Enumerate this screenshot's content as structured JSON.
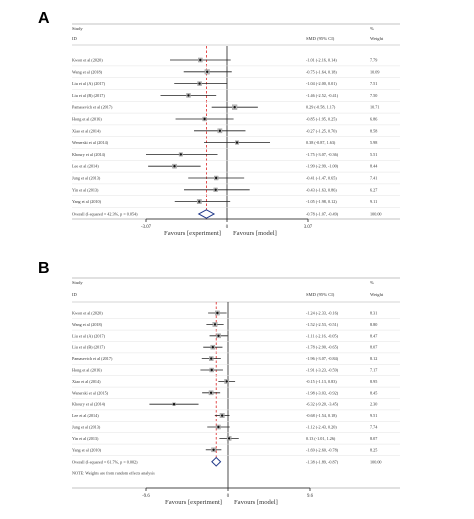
{
  "panels": [
    {
      "letter": "A",
      "header": {
        "study": "Study",
        "id": "ID",
        "smd": "SMD (95% CI)",
        "pct": "%",
        "weight": "Weight"
      },
      "axis": {
        "min": -3.07,
        "max": 3.07,
        "left_label": "-3.07",
        "center_label": "0",
        "right_label": "3.07"
      },
      "favours": {
        "left": "Favours [experiment]",
        "right": "Favours [model]"
      },
      "overall_line": -0.78,
      "studies": [
        {
          "id": "Kwon et al (2020)",
          "smd": -1.01,
          "lo": -2.16,
          "hi": 0.14,
          "ci": "-1.01 (-2.16, 0.14)",
          "weight": "7.79"
        },
        {
          "id": "Wang et al (2018)",
          "smd": -0.75,
          "lo": -1.64,
          "hi": 0.18,
          "ci": "-0.75 (-1.64, 0.18)",
          "weight": "10.09"
        },
        {
          "id": "Liu et al (A) (2017)",
          "smd": -1.04,
          "lo": -2.0,
          "hi": 0.01,
          "ci": "-1.04 (-2.00, 0.01)",
          "weight": "7.51"
        },
        {
          "id": "Liu et al (B) (2017)",
          "smd": -1.46,
          "lo": -2.52,
          "hi": -0.41,
          "ci": "-1.46 (-2.52, -0.41)",
          "weight": "7.50"
        },
        {
          "id": "Pamasevich et al (2017)",
          "smd": 0.29,
          "lo": -0.58,
          "hi": 1.17,
          "ci": "0.29 (-0.58, 1.17)",
          "weight": "10.71"
        },
        {
          "id": "Hong et al (2016)",
          "smd": -0.85,
          "lo": -1.95,
          "hi": 0.25,
          "ci": "-0.85 (-1.95, 0.25)",
          "weight": "6.86"
        },
        {
          "id": "Xiao et al (2014)",
          "smd": -0.27,
          "lo": -1.25,
          "hi": 0.7,
          "ci": "-0.27 (-1.25, 0.70)",
          "weight": "8.58"
        },
        {
          "id": "Wenerski et al (2014)",
          "smd": 0.38,
          "lo": -0.87,
          "hi": 1.63,
          "ci": "0.38 (-0.87, 1.63)",
          "weight": "5.98"
        },
        {
          "id": "Khoury et al (2014)",
          "smd": -1.75,
          "lo": -3.07,
          "hi": -0.36,
          "ci": "-1.75 (-3.07, -0.36)",
          "weight": "5.51"
        },
        {
          "id": "Lee et al (2014)",
          "smd": -1.99,
          "lo": -2.99,
          "hi": -1.0,
          "ci": "-1.99 (-2.99, -1.00)",
          "weight": "8.44"
        },
        {
          "id": "Jung et al (2013)",
          "smd": -0.41,
          "lo": -1.47,
          "hi": 0.65,
          "ci": "-0.41 (-1.47, 0.65)",
          "weight": "7.41"
        },
        {
          "id": "Yin et al (2013)",
          "smd": -0.43,
          "lo": -1.63,
          "hi": 0.86,
          "ci": "-0.43 (-1.63, 0.86)",
          "weight": "6.27"
        },
        {
          "id": "Yang et al (2010)",
          "smd": -1.05,
          "lo": -1.98,
          "hi": 0.12,
          "ci": "-1.05 (-1.98, 0.12)",
          "weight": "9.11"
        }
      ],
      "overall": {
        "label": "Overall (I-squared = 42.3%, p = 0.054)",
        "smd": -0.78,
        "lo": -1.07,
        "hi": -0.49,
        "ci": "-0.78 (-1.07, -0.49)",
        "weight": "100.00"
      },
      "note": ""
    },
    {
      "letter": "B",
      "header": {
        "study": "Study",
        "id": "ID",
        "smd": "SMD (95% CI)",
        "pct": "%",
        "weight": "Weight"
      },
      "axis": {
        "min": -9.6,
        "max": 9.6,
        "left_label": "-9.6",
        "center_label": "0",
        "right_label": "9.6"
      },
      "favours": {
        "left": "Favours [experiment]",
        "right": "Favours [model]"
      },
      "overall_line": -1.38,
      "studies": [
        {
          "id": "Kwon et al (2020)",
          "smd": -1.24,
          "lo": -2.33,
          "hi": -0.16,
          "ci": "-1.24 (-2.33, -0.16)",
          "weight": "8.31"
        },
        {
          "id": "Wang et al (2018)",
          "smd": -1.52,
          "lo": -2.53,
          "hi": -0.51,
          "ci": "-1.52 (-2.53, -0.51)",
          "weight": "8.80"
        },
        {
          "id": "Liu et al (A) (2017)",
          "smd": -1.11,
          "lo": -2.16,
          "hi": -0.05,
          "ci": "-1.11 (-2.16, -0.05)",
          "weight": "8.47"
        },
        {
          "id": "Liu et al (B) (2017)",
          "smd": -1.78,
          "lo": -2.9,
          "hi": -0.65,
          "ci": "-1.78 (-2.90, -0.65)",
          "weight": "8.07"
        },
        {
          "id": "Pamasevich et al (2017)",
          "smd": -1.96,
          "lo": -3.07,
          "hi": -0.84,
          "ci": "-1.96 (-3.07, -0.84)",
          "weight": "8.12"
        },
        {
          "id": "Hong et al (2016)",
          "smd": -1.91,
          "lo": -3.23,
          "hi": -0.59,
          "ci": "-1.91 (-3.23, -0.59)",
          "weight": "7.17"
        },
        {
          "id": "Xiao et al (2014)",
          "smd": -0.15,
          "lo": -1.13,
          "hi": 0.83,
          "ci": "-0.15 (-1.13, 0.83)",
          "weight": "8.95"
        },
        {
          "id": "Wanerski et al (2015)",
          "smd": -1.98,
          "lo": -3.03,
          "hi": -0.92,
          "ci": "-1.98 (-3.03, -0.92)",
          "weight": "8.45"
        },
        {
          "id": "Khoury et al (2014)",
          "smd": -6.32,
          "lo": -9.2,
          "hi": -3.45,
          "ci": "-6.32 (-9.20, -3.45)",
          "weight": "2.30"
        },
        {
          "id": "Lee et al (2014)",
          "smd": -0.68,
          "lo": -1.54,
          "hi": 0.18,
          "ci": "-0.68 (-1.54, 0.18)",
          "weight": "9.51"
        },
        {
          "id": "Jung et al (2013)",
          "smd": -1.12,
          "lo": -2.43,
          "hi": 0.2,
          "ci": "-1.12 (-2.43, 0.20)",
          "weight": "7.74"
        },
        {
          "id": "Yin et al (2013)",
          "smd": 0.13,
          "lo": -1.01,
          "hi": 1.26,
          "ci": "0.13 (-1.01, 1.26)",
          "weight": "8.07"
        },
        {
          "id": "Yang et al (2010)",
          "smd": -1.69,
          "lo": -2.6,
          "hi": -0.78,
          "ci": "-1.69 (-2.60, -0.78)",
          "weight": "8.25"
        }
      ],
      "overall": {
        "label": "Overall (I-squared = 61.7%, p = 0.002)",
        "smd": -1.38,
        "lo": -1.89,
        "hi": -0.87,
        "ci": "-1.38 (-1.89, -0.87)",
        "weight": "100.00"
      },
      "note": "NOTE: Weights are from random effects analysis"
    }
  ]
}
